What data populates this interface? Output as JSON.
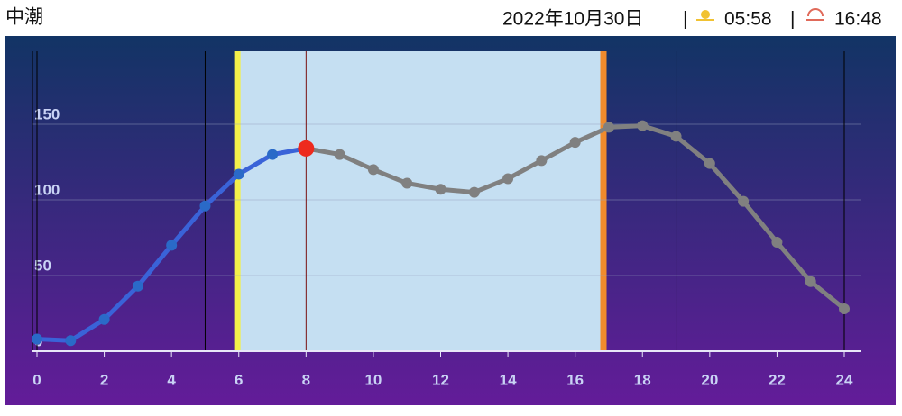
{
  "header": {
    "tide_name": "中潮",
    "date": "2022年10月30日",
    "separator": "|",
    "sunrise": "05:58",
    "sunset": "16:48"
  },
  "chart_data": {
    "type": "line",
    "x": [
      0,
      1,
      2,
      3,
      4,
      5,
      6,
      7,
      8,
      9,
      10,
      11,
      12,
      13,
      14,
      15,
      16,
      17,
      18,
      19,
      20,
      21,
      22,
      23,
      24
    ],
    "series": [
      {
        "color": "#3a63d8",
        "future_color": "#808080",
        "values": [
          8,
          7,
          21,
          43,
          70,
          96,
          117,
          130,
          134,
          130,
          120,
          111,
          107,
          105,
          114,
          126,
          138,
          148,
          149,
          142,
          124,
          99,
          72,
          46,
          28
        ]
      }
    ],
    "now": 8,
    "now_color": "#ee2a1e",
    "daylight": [
      5.97,
      16.8
    ],
    "daylight_color": "#c5dff2",
    "sunrise_color": "#f4f04a",
    "sunset_color": "#f08b2c",
    "xlim": [
      0,
      24
    ],
    "ylim": [
      0,
      200
    ],
    "xticks": [
      0,
      2,
      4,
      6,
      8,
      10,
      12,
      14,
      16,
      18,
      20,
      22,
      24
    ],
    "yticks": [
      0,
      50,
      100,
      150
    ],
    "vlines": [
      0,
      5,
      19,
      24
    ],
    "grid": true
  }
}
